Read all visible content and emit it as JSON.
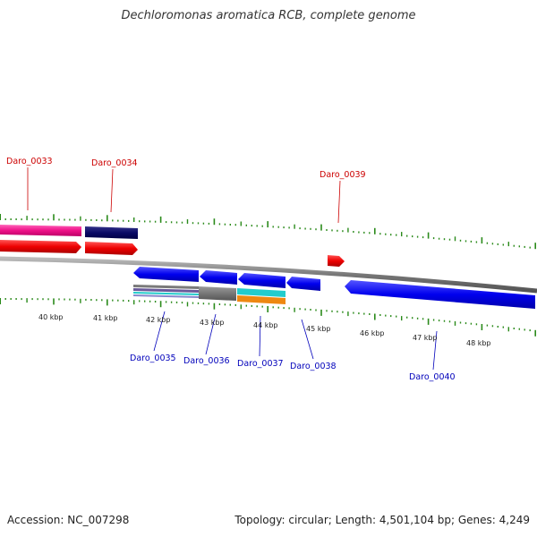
{
  "title": "Dechloromonas aromatica RCB, complete genome",
  "footer": {
    "accession": "Accession: NC_007298",
    "summary": "Topology: circular; Length: 4,501,104 bp; Genes: 4,249"
  },
  "kbp_ticks": [
    {
      "kbp": 40,
      "label": "40 kbp"
    },
    {
      "kbp": 41,
      "label": "41 kbp"
    },
    {
      "kbp": 42,
      "label": "42 kbp"
    },
    {
      "kbp": 43,
      "label": "43 kbp"
    },
    {
      "kbp": 44,
      "label": "44 kbp"
    },
    {
      "kbp": 45,
      "label": "45 kbp"
    },
    {
      "kbp": 46,
      "label": "46 kbp"
    },
    {
      "kbp": 47,
      "label": "47 kbp"
    },
    {
      "kbp": 48,
      "label": "48 kbp"
    }
  ],
  "genes": [
    {
      "id": "Daro_0033",
      "strand": "forward",
      "color": "#cc0000"
    },
    {
      "id": "Daro_0034",
      "strand": "forward",
      "color": "#cc0000"
    },
    {
      "id": "Daro_0039",
      "strand": "forward",
      "color": "#cc0000"
    },
    {
      "id": "Daro_0035",
      "strand": "reverse",
      "color": "#0000bb"
    },
    {
      "id": "Daro_0036",
      "strand": "reverse",
      "color": "#0000bb"
    },
    {
      "id": "Daro_0037",
      "strand": "reverse",
      "color": "#0000bb"
    },
    {
      "id": "Daro_0038",
      "strand": "reverse",
      "color": "#0000bb"
    },
    {
      "id": "Daro_0040",
      "strand": "reverse",
      "color": "#0000bb"
    }
  ],
  "colors": {
    "tick": "#2a8a1a",
    "backbone": "#8a8a8a",
    "forward_gene": "#ee1111",
    "reverse_gene": "#1111ee",
    "cog_pink": "#ee2288",
    "cog_navy": "#0a0a66",
    "cog_grey": "#777777",
    "cog_cyan": "#22cccc",
    "cog_orange": "#ee8811",
    "cog_purple": "#6a5a9a"
  }
}
